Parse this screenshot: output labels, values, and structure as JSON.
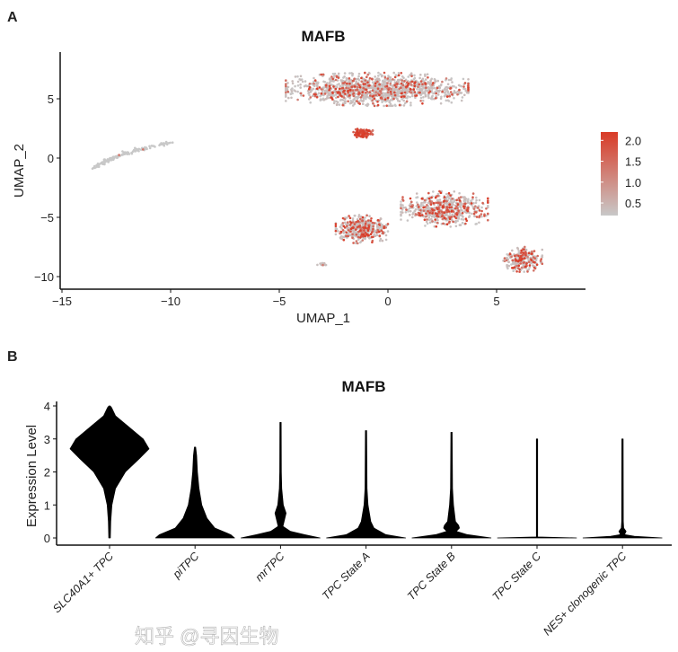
{
  "watermark": "知乎 @寻因生物",
  "chart_data": [
    {
      "panel_label": "A",
      "type": "scatter",
      "title": "MAFB",
      "xlabel": "UMAP_1",
      "ylabel": "UMAP_2",
      "xlim": [
        -15.2,
        9
      ],
      "ylim": [
        -11,
        8.8
      ],
      "xticks": [
        -15,
        -10,
        -5,
        0,
        5
      ],
      "yticks": [
        -10,
        -5,
        0,
        5
      ],
      "legend": {
        "position": "right",
        "ticks": [
          0.5,
          1.0,
          1.5,
          2.0
        ],
        "tick_labels": [
          "0.5",
          "1.0",
          "1.5",
          "2.0"
        ],
        "range": [
          0.2,
          2.2
        ],
        "low_color": "#c8c8c8",
        "high_color": "#d93a26"
      },
      "clusters": [
        {
          "center": [
            -0.5,
            5.8
          ],
          "spread": [
            4.2,
            1.4
          ],
          "n": 1400,
          "expressing_fraction": 0.18
        },
        {
          "center": [
            -1.2,
            2.1
          ],
          "spread": [
            0.5,
            0.4
          ],
          "n": 120,
          "expressing_fraction": 0.95
        },
        {
          "center": [
            2.6,
            -4.3
          ],
          "spread": [
            2.0,
            1.5
          ],
          "n": 600,
          "expressing_fraction": 0.3
        },
        {
          "center": [
            -1.2,
            -6.0
          ],
          "spread": [
            1.2,
            1.2
          ],
          "n": 450,
          "expressing_fraction": 0.3
        },
        {
          "center": [
            6.2,
            -8.5
          ],
          "spread": [
            0.9,
            1.1
          ],
          "n": 250,
          "expressing_fraction": 0.35
        },
        {
          "center": [
            -3.0,
            -9.0
          ],
          "spread": [
            0.25,
            0.2
          ],
          "n": 15,
          "expressing_fraction": 0.1
        }
      ],
      "strand": {
        "from": [
          -13.5,
          -0.8
        ],
        "via": [
          -12.3,
          0.6
        ],
        "to": [
          -10.0,
          1.3
        ],
        "n": 120
      }
    },
    {
      "panel_label": "B",
      "type": "violin",
      "title": "MAFB",
      "ylabel": "Expression Level",
      "ylim": [
        -0.2,
        4.1
      ],
      "yticks": [
        0,
        1,
        2,
        3,
        4
      ],
      "fill": "#000000",
      "categories": [
        "SLC40A1+ TPC",
        "piTPC",
        "mrTPC",
        "TPC State A",
        "TPC State B",
        "TPC State C",
        "NES+ clonogenic TPC"
      ],
      "density_profiles": [
        [
          [
            0,
            0.02
          ],
          [
            0.5,
            0.03
          ],
          [
            1,
            0.06
          ],
          [
            1.5,
            0.15
          ],
          [
            2,
            0.4
          ],
          [
            2.4,
            0.75
          ],
          [
            2.7,
            1.0
          ],
          [
            3,
            0.85
          ],
          [
            3.4,
            0.45
          ],
          [
            3.7,
            0.15
          ],
          [
            3.95,
            0.05
          ],
          [
            4,
            0
          ]
        ],
        [
          [
            0,
            1
          ],
          [
            0.1,
            0.9
          ],
          [
            0.3,
            0.5
          ],
          [
            0.6,
            0.3
          ],
          [
            1,
            0.17
          ],
          [
            1.5,
            0.1
          ],
          [
            2,
            0.06
          ],
          [
            2.5,
            0.04
          ],
          [
            2.75,
            0
          ]
        ],
        [
          [
            0,
            1
          ],
          [
            0.1,
            0.6
          ],
          [
            0.2,
            0.25
          ],
          [
            0.35,
            0.06
          ],
          [
            0.5,
            0.09
          ],
          [
            0.75,
            0.14
          ],
          [
            1,
            0.07
          ],
          [
            1.5,
            0.03
          ],
          [
            2,
            0.02
          ],
          [
            3.5,
            0
          ]
        ],
        [
          [
            0,
            1
          ],
          [
            0.1,
            0.5
          ],
          [
            0.3,
            0.2
          ],
          [
            0.5,
            0.12
          ],
          [
            1,
            0.05
          ],
          [
            1.5,
            0.025
          ],
          [
            3.25,
            0
          ]
        ],
        [
          [
            0,
            1
          ],
          [
            0.1,
            0.4
          ],
          [
            0.2,
            0.12
          ],
          [
            0.3,
            0.2
          ],
          [
            0.38,
            0.18
          ],
          [
            0.5,
            0.1
          ],
          [
            1,
            0.05
          ],
          [
            1.5,
            0.025
          ],
          [
            3.2,
            0
          ]
        ],
        [
          [
            0,
            1
          ],
          [
            0.03,
            0.01
          ],
          [
            3,
            0
          ]
        ],
        [
          [
            0,
            1
          ],
          [
            0.05,
            0.3
          ],
          [
            0.1,
            0.05
          ],
          [
            0.2,
            0.09
          ],
          [
            0.3,
            0.03
          ],
          [
            0.5,
            0.02
          ],
          [
            3,
            0
          ]
        ]
      ]
    }
  ]
}
